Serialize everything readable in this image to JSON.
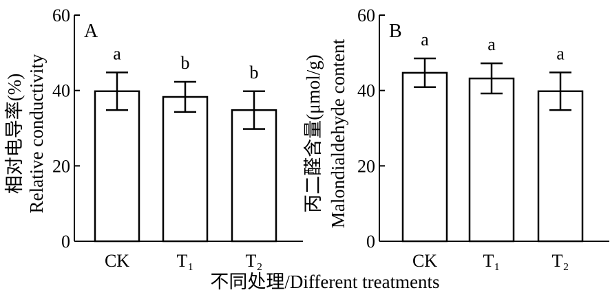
{
  "x_axis_title": "不同处理/Different treatments",
  "chart_data": [
    {
      "type": "bar",
      "panel_label": "A",
      "ylabel_cn": "相对电导率(%)",
      "ylabel_en": "Relative conductivity",
      "ylim": [
        0,
        60
      ],
      "yticks": [
        0,
        20,
        40,
        60
      ],
      "categories": [
        "CK",
        "T₁",
        "T₂"
      ],
      "values": [
        39.8,
        38.3,
        34.8
      ],
      "errors": [
        5.0,
        4.0,
        5.0
      ],
      "significance": [
        "a",
        "b",
        "b"
      ],
      "bar_fill": "#ffffff",
      "bar_stroke": "#000000"
    },
    {
      "type": "bar",
      "panel_label": "B",
      "ylabel_cn": "丙二醛含量(μmol/g)",
      "ylabel_en": "Malondialdehyde content",
      "ylim": [
        0,
        60
      ],
      "yticks": [
        0,
        20,
        40,
        60
      ],
      "categories": [
        "CK",
        "T₁",
        "T₂"
      ],
      "values": [
        44.7,
        43.2,
        39.8
      ],
      "errors": [
        3.8,
        4.0,
        5.0
      ],
      "significance": [
        "a",
        "a",
        "a"
      ],
      "bar_fill": "#ffffff",
      "bar_stroke": "#000000"
    }
  ]
}
